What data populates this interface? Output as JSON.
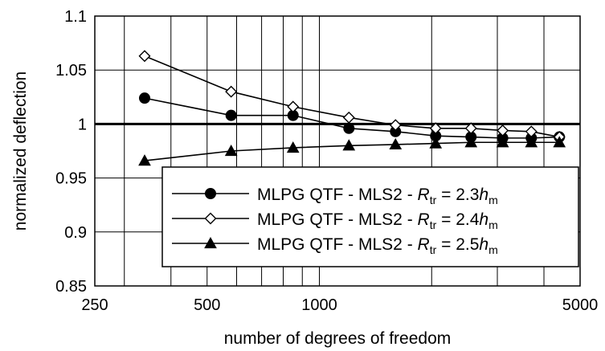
{
  "chart_data": {
    "type": "line",
    "xlabel": "number of degrees of freedom",
    "ylabel": "normalized deflection",
    "x_scale": "log",
    "xlim": [
      250,
      5000
    ],
    "ylim": [
      0.85,
      1.1
    ],
    "x_ticks": [
      250,
      500,
      1000,
      5000
    ],
    "x_tick_labels": [
      "250",
      "500",
      "1000",
      "5000"
    ],
    "x_minor_grid": [
      300,
      400,
      600,
      700,
      800,
      900,
      2000,
      3000,
      4000
    ],
    "y_ticks": [
      0.85,
      0.9,
      0.95,
      1,
      1.05,
      1.1
    ],
    "y_tick_labels": [
      "0.85",
      "0.9",
      "0.95",
      "1",
      "1.05",
      "1.1"
    ],
    "grid": true,
    "reference_line": 1,
    "legend_position": "bottom-right",
    "series": [
      {
        "name_prefix": "MLPG QTF - MLS2 - ",
        "name_var": "R",
        "name_sub": "tr",
        "name_eq": " = 2.3",
        "name_var2": "h",
        "name_sub2": "m",
        "marker": "circle",
        "x": [
          340,
          580,
          850,
          1200,
          1600,
          2050,
          2550,
          3100,
          3700,
          4400
        ],
        "y": [
          1.024,
          1.008,
          1.008,
          0.996,
          0.993,
          0.989,
          0.988,
          0.987,
          0.987,
          0.988
        ]
      },
      {
        "name_prefix": "MLPG QTF - MLS2 - ",
        "name_var": "R",
        "name_sub": "tr",
        "name_eq": " = 2.4",
        "name_var2": "h",
        "name_sub2": "m",
        "marker": "diamond-open",
        "x": [
          340,
          580,
          850,
          1200,
          1600,
          2050,
          2550,
          3100,
          3700,
          4400
        ],
        "y": [
          1.063,
          1.03,
          1.016,
          1.006,
          0.999,
          0.996,
          0.996,
          0.994,
          0.993,
          0.988
        ]
      },
      {
        "name_prefix": "MLPG QTF - MLS2 - ",
        "name_var": "R",
        "name_sub": "tr",
        "name_eq": " = 2.5",
        "name_var2": "h",
        "name_sub2": "m",
        "marker": "triangle",
        "x": [
          340,
          580,
          850,
          1200,
          1600,
          2050,
          2550,
          3100,
          3700,
          4400
        ],
        "y": [
          0.966,
          0.975,
          0.978,
          0.98,
          0.981,
          0.982,
          0.983,
          0.983,
          0.983,
          0.983
        ]
      }
    ]
  }
}
